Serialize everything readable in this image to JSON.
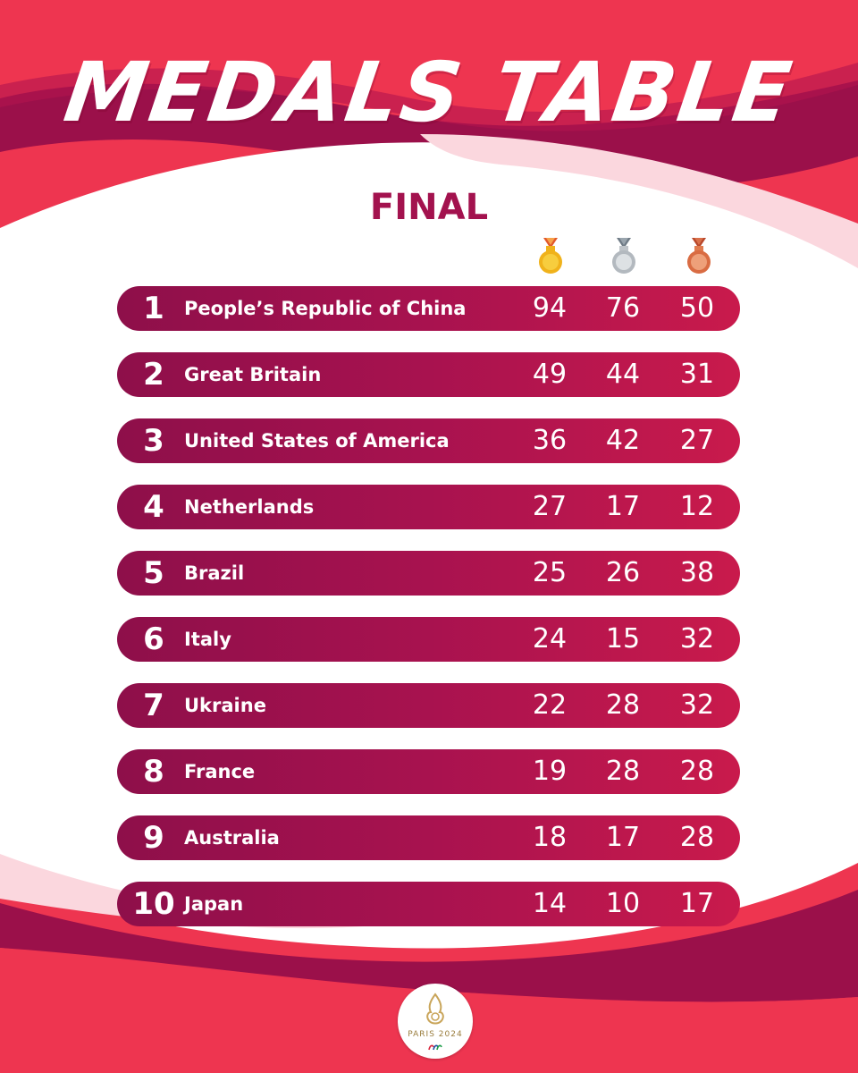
{
  "header": {
    "title": "MEDALS TABLE",
    "subtitle": "FINAL"
  },
  "icons": {
    "gold": "gold-medal-icon",
    "silver": "silver-medal-icon",
    "bronze": "bronze-medal-icon"
  },
  "colors": {
    "background": "#ee3550",
    "panel": "#ffffff",
    "row_dark": "#8e0f4a",
    "row_light": "#c91a4c",
    "subtitle": "#a3124e",
    "gold": "#f0b21b",
    "silver": "#bfc4c9",
    "bronze": "#e07b4f"
  },
  "rows": [
    {
      "rank": "1",
      "country": "People’s Republic of China",
      "gold": "94",
      "silver": "76",
      "bronze": "50"
    },
    {
      "rank": "2",
      "country": "Great Britain",
      "gold": "49",
      "silver": "44",
      "bronze": "31"
    },
    {
      "rank": "3",
      "country": "United States of America",
      "gold": "36",
      "silver": "42",
      "bronze": "27"
    },
    {
      "rank": "4",
      "country": "Netherlands",
      "gold": "27",
      "silver": "17",
      "bronze": "12"
    },
    {
      "rank": "5",
      "country": "Brazil",
      "gold": "25",
      "silver": "26",
      "bronze": "38"
    },
    {
      "rank": "6",
      "country": "Italy",
      "gold": "24",
      "silver": "15",
      "bronze": "32"
    },
    {
      "rank": "7",
      "country": "Ukraine",
      "gold": "22",
      "silver": "28",
      "bronze": "32"
    },
    {
      "rank": "8",
      "country": "France",
      "gold": "19",
      "silver": "28",
      "bronze": "28"
    },
    {
      "rank": "9",
      "country": "Australia",
      "gold": "18",
      "silver": "17",
      "bronze": "28"
    },
    {
      "rank": "10",
      "country": "Japan",
      "gold": "14",
      "silver": "10",
      "bronze": "17"
    }
  ],
  "logo": {
    "text": "PARIS 2024"
  }
}
